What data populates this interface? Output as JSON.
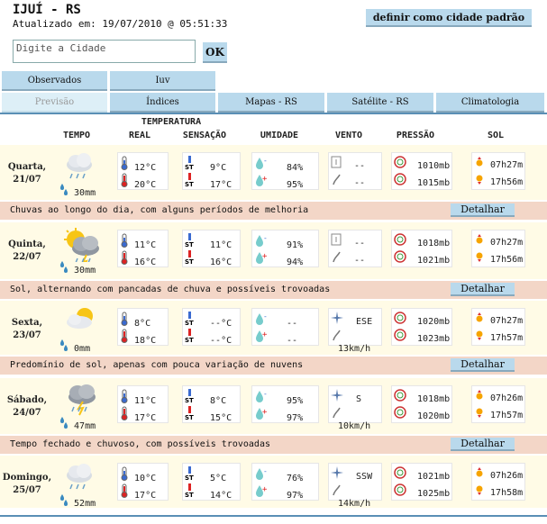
{
  "header": {
    "city": "IJUÍ - RS",
    "updated": "Atualizado em: 19/07/2010 @ 05:51:33",
    "default_button": "definir como cidade padrão"
  },
  "search": {
    "placeholder": "Digite a Cidade",
    "ok_label": "OK"
  },
  "tabs_top": [
    "Observados",
    "Iuv"
  ],
  "tabs_main": [
    "Previsão",
    "Índices",
    "Mapas - RS",
    "Satélite - RS",
    "Climatologia"
  ],
  "columns": {
    "temperature_group": "TEMPERATURA",
    "tempo": "TEMPO",
    "real": "REAL",
    "sensacao": "SENSAÇÃO",
    "umidade": "UMIDADE",
    "vento": "VENTO",
    "pressao": "PRESSÃO",
    "sol": "SOL"
  },
  "detail_label": "Detalhar",
  "days": [
    {
      "name": "Quarta,",
      "date": "21/07",
      "weather_icon": "rain-cloud-icon",
      "precip": "30mm",
      "temp_min": "12°C",
      "temp_max": "20°C",
      "feel_min": "9°C",
      "feel_max": "17°C",
      "hum_min": "84%",
      "hum_max": "95%",
      "wind_dir": "--",
      "wind_speed": "--",
      "press_1": "1010mb",
      "press_2": "1015mb",
      "sunrise": "07h27m",
      "sunset": "17h56m",
      "description": "Chuvas ao longo do dia, com alguns períodos de melhoria"
    },
    {
      "name": "Quinta,",
      "date": "22/07",
      "weather_icon": "sun-rain-storm-icon",
      "precip": "30mm",
      "temp_min": "11°C",
      "temp_max": "16°C",
      "feel_min": "11°C",
      "feel_max": "16°C",
      "hum_min": "91%",
      "hum_max": "94%",
      "wind_dir": "--",
      "wind_speed": "--",
      "press_1": "1018mb",
      "press_2": "1021mb",
      "sunrise": "07h27m",
      "sunset": "17h56m",
      "description": "Sol, alternando com pancadas de chuva e possíveis trovoadas"
    },
    {
      "name": "Sexta,",
      "date": "23/07",
      "weather_icon": "sun-cloud-icon",
      "precip": "0mm",
      "temp_min": "8°C",
      "temp_max": "18°C",
      "feel_min": "--°C",
      "feel_max": "--°C",
      "hum_min": "--",
      "hum_max": "--",
      "wind_dir": "ESE",
      "wind_speed": "13km/h",
      "press_1": "1020mb",
      "press_2": "1023mb",
      "sunrise": "07h27m",
      "sunset": "17h57m",
      "description": "Predomínio de sol, apenas com pouca variação de nuvens"
    },
    {
      "name": "Sábado,",
      "date": "24/07",
      "weather_icon": "storm-cloud-icon",
      "precip": "47mm",
      "temp_min": "11°C",
      "temp_max": "17°C",
      "feel_min": "8°C",
      "feel_max": "15°C",
      "hum_min": "95%",
      "hum_max": "97%",
      "wind_dir": "S",
      "wind_speed": "10km/h",
      "press_1": "1018mb",
      "press_2": "1020mb",
      "sunrise": "07h26m",
      "sunset": "17h57m",
      "description": "Tempo fechado e chuvoso, com possíveis trovoadas"
    },
    {
      "name": "Domingo,",
      "date": "25/07",
      "weather_icon": "rain-cloud-icon",
      "precip": "52mm",
      "temp_min": "10°C",
      "temp_max": "17°C",
      "feel_min": "5°C",
      "feel_max": "14°C",
      "hum_min": "76%",
      "hum_max": "97%",
      "wind_dir": "SSW",
      "wind_speed": "14km/h",
      "press_1": "1021mb",
      "press_2": "1025mb",
      "sunrise": "07h26m",
      "sunset": "17h58m",
      "description": ""
    }
  ]
}
